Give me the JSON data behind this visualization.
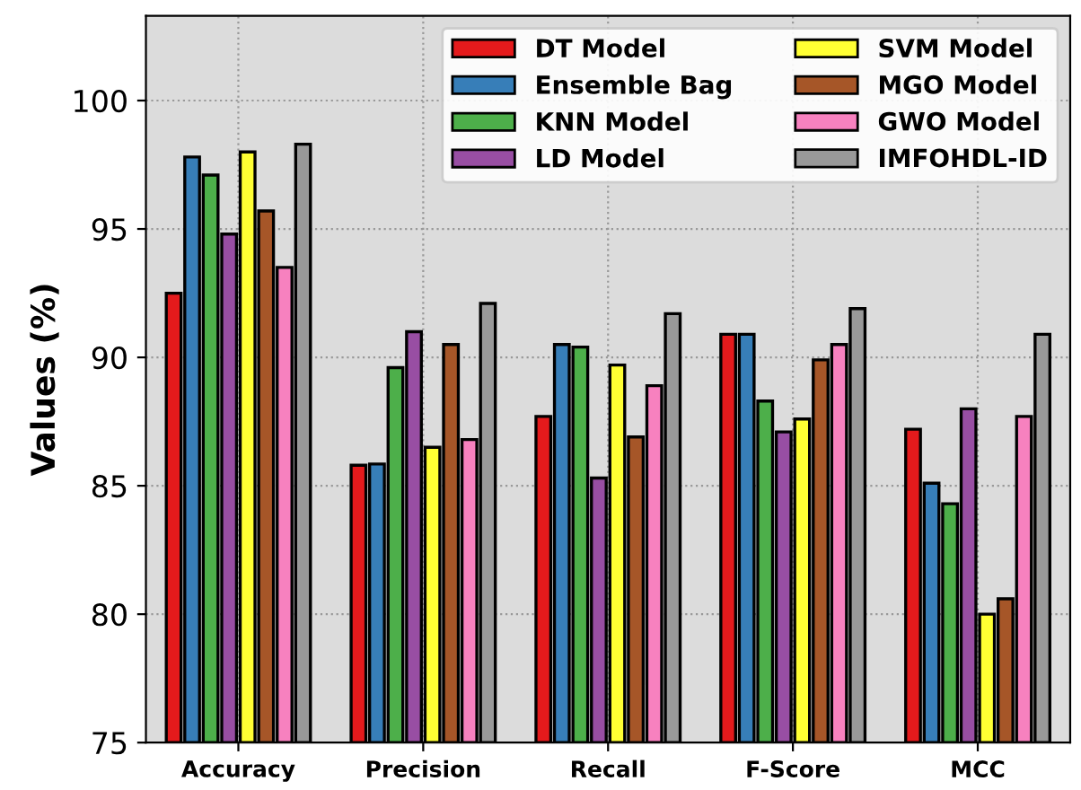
{
  "chart_data": {
    "type": "bar",
    "ylabel": "Values (%)",
    "categories": [
      "Accuracy",
      "Precision",
      "Recall",
      "F-Score",
      "MCC"
    ],
    "series": [
      {
        "name": "DT Model",
        "color": "#e41a1c",
        "values": [
          92.5,
          85.8,
          87.7,
          90.9,
          87.2
        ]
      },
      {
        "name": "Ensemble Bag",
        "color": "#377eb8",
        "values": [
          97.8,
          85.85,
          90.5,
          90.9,
          85.1
        ]
      },
      {
        "name": "KNN Model",
        "color": "#4daf4a",
        "values": [
          97.1,
          89.6,
          90.4,
          88.3,
          84.3
        ]
      },
      {
        "name": "LD Model",
        "color": "#984ea3",
        "values": [
          94.8,
          91.0,
          85.3,
          87.1,
          88.0
        ]
      },
      {
        "name": "SVM Model",
        "color": "#ffff33",
        "values": [
          98.0,
          86.5,
          89.7,
          87.6,
          80.0
        ]
      },
      {
        "name": "MGO Model",
        "color": "#a65628",
        "values": [
          95.7,
          90.5,
          86.9,
          89.9,
          80.6
        ]
      },
      {
        "name": "GWO Model",
        "color": "#f781bf",
        "values": [
          93.5,
          86.8,
          88.9,
          90.5,
          87.7
        ]
      },
      {
        "name": "IMFOHDL-ID",
        "color": "#999999",
        "values": [
          98.3,
          92.1,
          91.7,
          91.9,
          90.9
        ]
      }
    ],
    "ylim": [
      75,
      103.3
    ],
    "yticks": [
      75,
      80,
      85,
      90,
      95,
      100
    ],
    "grid": true,
    "legend": "top right"
  }
}
